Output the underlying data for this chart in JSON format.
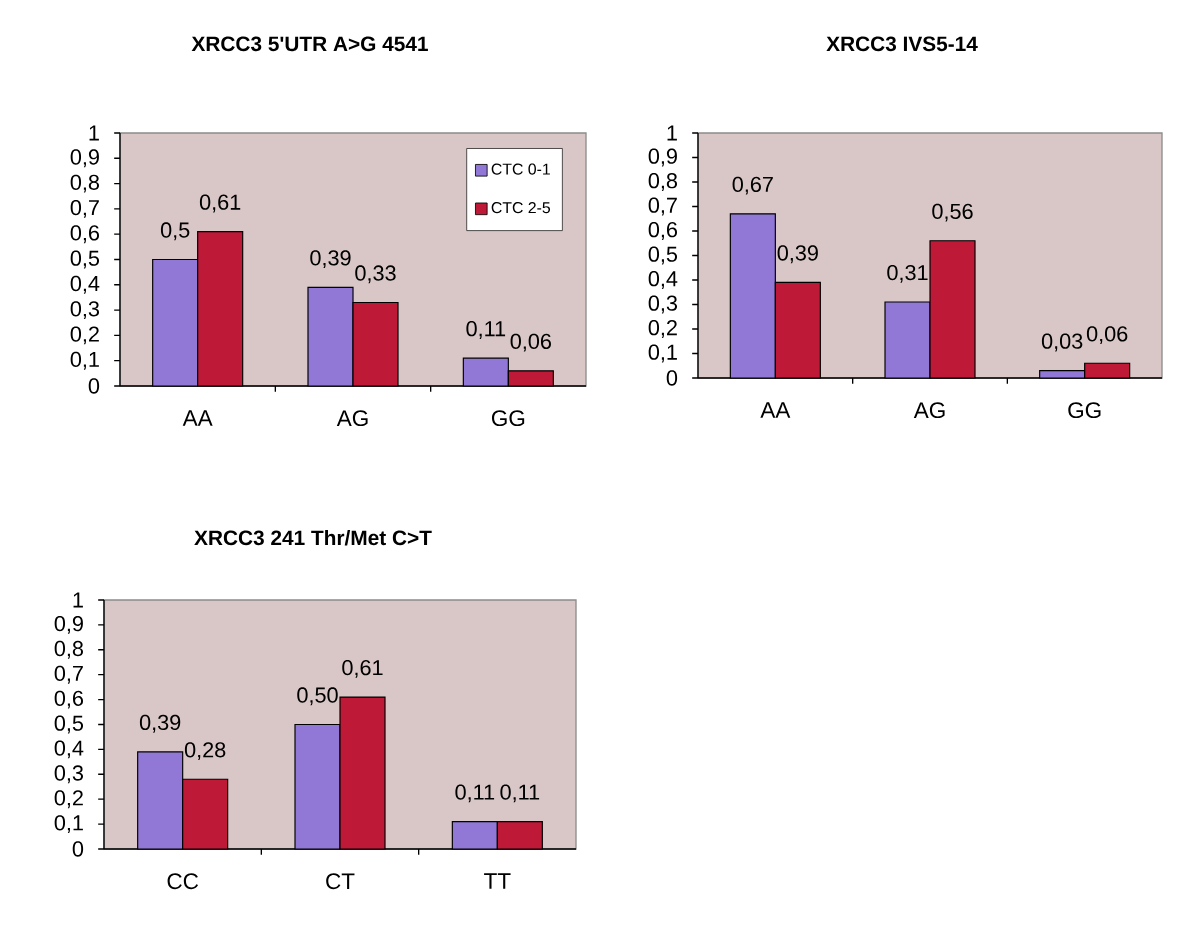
{
  "chart_data": [
    {
      "type": "bar",
      "title": "XRCC3 5'UTR A>G 4541",
      "categories": [
        "AA",
        "AG",
        "GG"
      ],
      "series": [
        {
          "name": "CTC 0-1",
          "color": "#9178d7",
          "values": [
            0.5,
            0.39,
            0.11
          ],
          "value_labels": [
            "0,5",
            "0,39",
            "0,11"
          ]
        },
        {
          "name": "CTC 2-5",
          "color": "#be1937",
          "values": [
            0.61,
            0.33,
            0.06
          ],
          "value_labels": [
            "0,61",
            "0,33",
            "0,06"
          ]
        }
      ],
      "ylim": [
        0,
        1
      ],
      "yticks": [
        0,
        {
          "value": 0.1,
          "label": "0,1"
        },
        {
          "value": 0.2,
          "label": "0,2"
        },
        {
          "value": 0.3,
          "label": "0,3"
        },
        {
          "value": 0.4,
          "label": "0,4"
        },
        {
          "value": 0.5,
          "label": "0,5"
        },
        {
          "value": 0.6,
          "label": "0,6"
        },
        {
          "value": 0.7,
          "label": "0,7"
        },
        {
          "value": 0.8,
          "label": "0,8"
        },
        {
          "value": 0.9,
          "label": "0,9"
        },
        1
      ],
      "legend": "top right"
    },
    {
      "type": "bar",
      "title": "XRCC3 IVS5-14",
      "categories": [
        "AA",
        "AG",
        "GG"
      ],
      "series": [
        {
          "color": "#9178d7",
          "values": [
            0.67,
            0.31,
            0.03
          ],
          "value_labels": [
            "0,67",
            "0,31",
            "0,03"
          ]
        },
        {
          "color": "#be1937",
          "values": [
            0.39,
            0.56,
            0.06
          ],
          "value_labels": [
            "0,39",
            "0,56",
            "0,06"
          ]
        }
      ],
      "ylim": [
        0,
        1
      ],
      "yticks": [
        0,
        {
          "value": 0.1,
          "label": "0,1"
        },
        {
          "value": 0.2,
          "label": "0,2"
        },
        {
          "value": 0.3,
          "label": "0,3"
        },
        {
          "value": 0.4,
          "label": "0,4"
        },
        {
          "value": 0.5,
          "label": "0,5"
        },
        {
          "value": 0.6,
          "label": "0,6"
        },
        {
          "value": 0.7,
          "label": "0,7"
        },
        {
          "value": 0.8,
          "label": "0,8"
        },
        {
          "value": 0.9,
          "label": "0,9"
        },
        1
      ]
    },
    {
      "type": "bar",
      "title": "XRCC3 241 Thr/Met C>T",
      "categories": [
        "CC",
        "CT",
        "TT"
      ],
      "series": [
        {
          "color": "#9178d7",
          "values": [
            0.39,
            0.5,
            0.11
          ],
          "value_labels": [
            "0,39",
            "0,50",
            "0,11"
          ]
        },
        {
          "color": "#be1937",
          "values": [
            0.28,
            0.61,
            0.11
          ],
          "value_labels": [
            "0,28",
            "0,61",
            "0,11"
          ]
        }
      ],
      "ylim": [
        0,
        1
      ],
      "yticks": [
        0,
        {
          "value": 0.1,
          "label": "0,1"
        },
        {
          "value": 0.2,
          "label": "0,2"
        },
        {
          "value": 0.3,
          "label": "0,3"
        },
        {
          "value": 0.4,
          "label": "0,4"
        },
        {
          "value": 0.5,
          "label": "0,5"
        },
        {
          "value": 0.6,
          "label": "0,6"
        },
        {
          "value": 0.7,
          "label": "0,7"
        },
        {
          "value": 0.8,
          "label": "0,8"
        },
        {
          "value": 0.9,
          "label": "0,9"
        },
        1
      ]
    }
  ]
}
